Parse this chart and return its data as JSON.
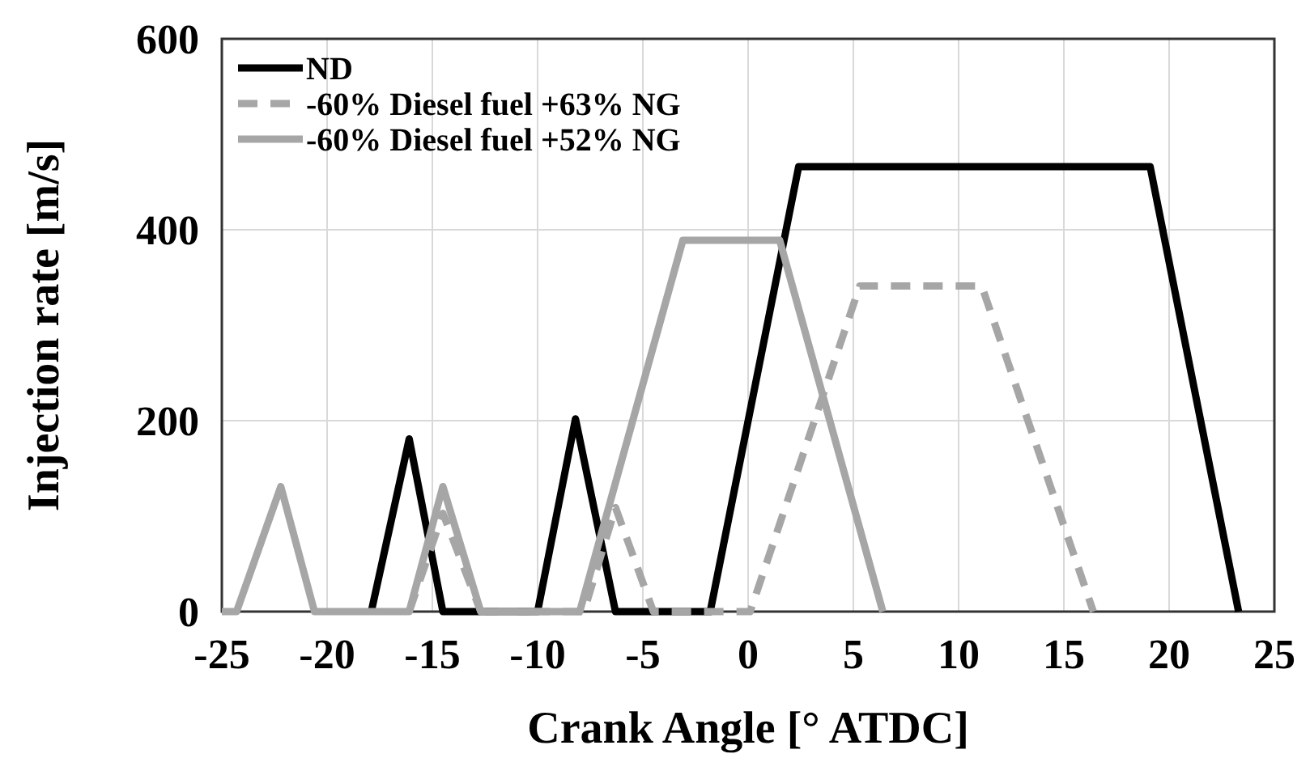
{
  "chart_data": {
    "type": "line",
    "xlabel": "Crank Angle [° ATDC]",
    "ylabel": "Injection rate [m/s]",
    "xlim": [
      -25,
      25
    ],
    "xticks": [
      -25,
      -20,
      -15,
      -10,
      -5,
      0,
      5,
      10,
      15,
      20,
      25
    ],
    "ylim": [
      0,
      600
    ],
    "yticks": [
      0,
      200,
      400,
      600
    ],
    "grid": true,
    "legend": "top left",
    "series": [
      {
        "name": "ND",
        "color": "#000000",
        "line_style": "solid",
        "x": [
          -17.9,
          -16.1,
          -14.5,
          -10,
          -8.2,
          -6.3,
          -1.8,
          2.4,
          19.1,
          23.3
        ],
        "values": [
          0,
          181,
          0,
          0,
          202,
          0,
          0,
          466,
          466,
          0
        ]
      },
      {
        "name": "-60% Diesel fuel +63% NG",
        "color": "#a6a6a6",
        "line_style": "dashed",
        "x": [
          -16.1,
          -14.5,
          -12.7,
          -7.8,
          -6.3,
          -4.5,
          0.1,
          5.3,
          11.1,
          16.4
        ],
        "values": [
          0,
          103,
          0,
          0,
          109,
          0,
          0,
          341,
          341,
          0
        ]
      },
      {
        "name": "-60% Diesel fuel +52% NG",
        "color": "#a6a6a6",
        "line_style": "solid",
        "x": [
          -25,
          -24.3,
          -22.2,
          -20.6,
          -16.1,
          -14.5,
          -12.7,
          -8,
          -3.1,
          1.5,
          6.4
        ],
        "values": [
          0,
          0,
          131,
          0,
          0,
          131,
          0,
          0,
          389,
          389,
          0
        ]
      }
    ]
  }
}
